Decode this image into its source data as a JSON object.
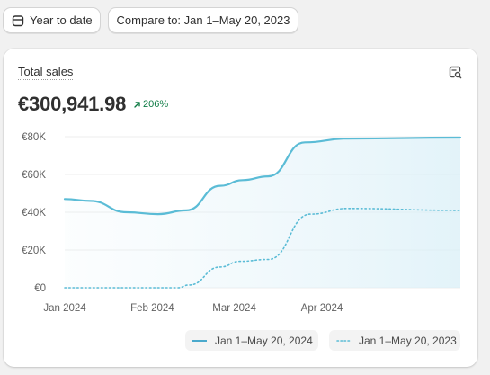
{
  "toolbar": {
    "date_range_label": "Year to date",
    "compare_label": "Compare to: Jan 1–May 20, 2023",
    "calendar_icon": "calendar-icon"
  },
  "card": {
    "title": "Total sales",
    "explore_icon": "search-report-icon",
    "total_value": "€300,941.98",
    "change_value": "206%",
    "change_icon": "arrow-up-right-icon",
    "change_color": "#0c7a43"
  },
  "chart_data": {
    "type": "line",
    "x_ticks": [
      "Jan 2024",
      "Feb 2024",
      "Mar 2024",
      "Apr 2024"
    ],
    "y_ticks": [
      "€0",
      "€20K",
      "€40K",
      "€60K",
      "€80K"
    ],
    "ylim": [
      0,
      80000
    ],
    "x_domain": [
      0,
      140
    ],
    "tick_positions": [
      0,
      31,
      60,
      91
    ],
    "series": [
      {
        "name": "Jan 1–May 20, 2024",
        "style": "solid",
        "color": "#5bbcd6",
        "points": [
          [
            0,
            47000
          ],
          [
            9,
            46000
          ],
          [
            22,
            40000
          ],
          [
            33,
            39000
          ],
          [
            43,
            41000
          ],
          [
            55,
            54000
          ],
          [
            63,
            57000
          ],
          [
            72,
            59000
          ],
          [
            85,
            77000
          ],
          [
            100,
            79000
          ],
          [
            140,
            79500
          ]
        ]
      },
      {
        "name": "Jan 1–May 20, 2023",
        "style": "dotted",
        "color": "#5bbcd6",
        "points": [
          [
            0,
            0
          ],
          [
            40,
            0
          ],
          [
            44,
            1500
          ],
          [
            55,
            11000
          ],
          [
            62,
            14000
          ],
          [
            72,
            15000
          ],
          [
            87,
            39000
          ],
          [
            100,
            42000
          ],
          [
            140,
            41000
          ]
        ]
      }
    ],
    "legend_position": "bottom-right",
    "grid": true
  }
}
